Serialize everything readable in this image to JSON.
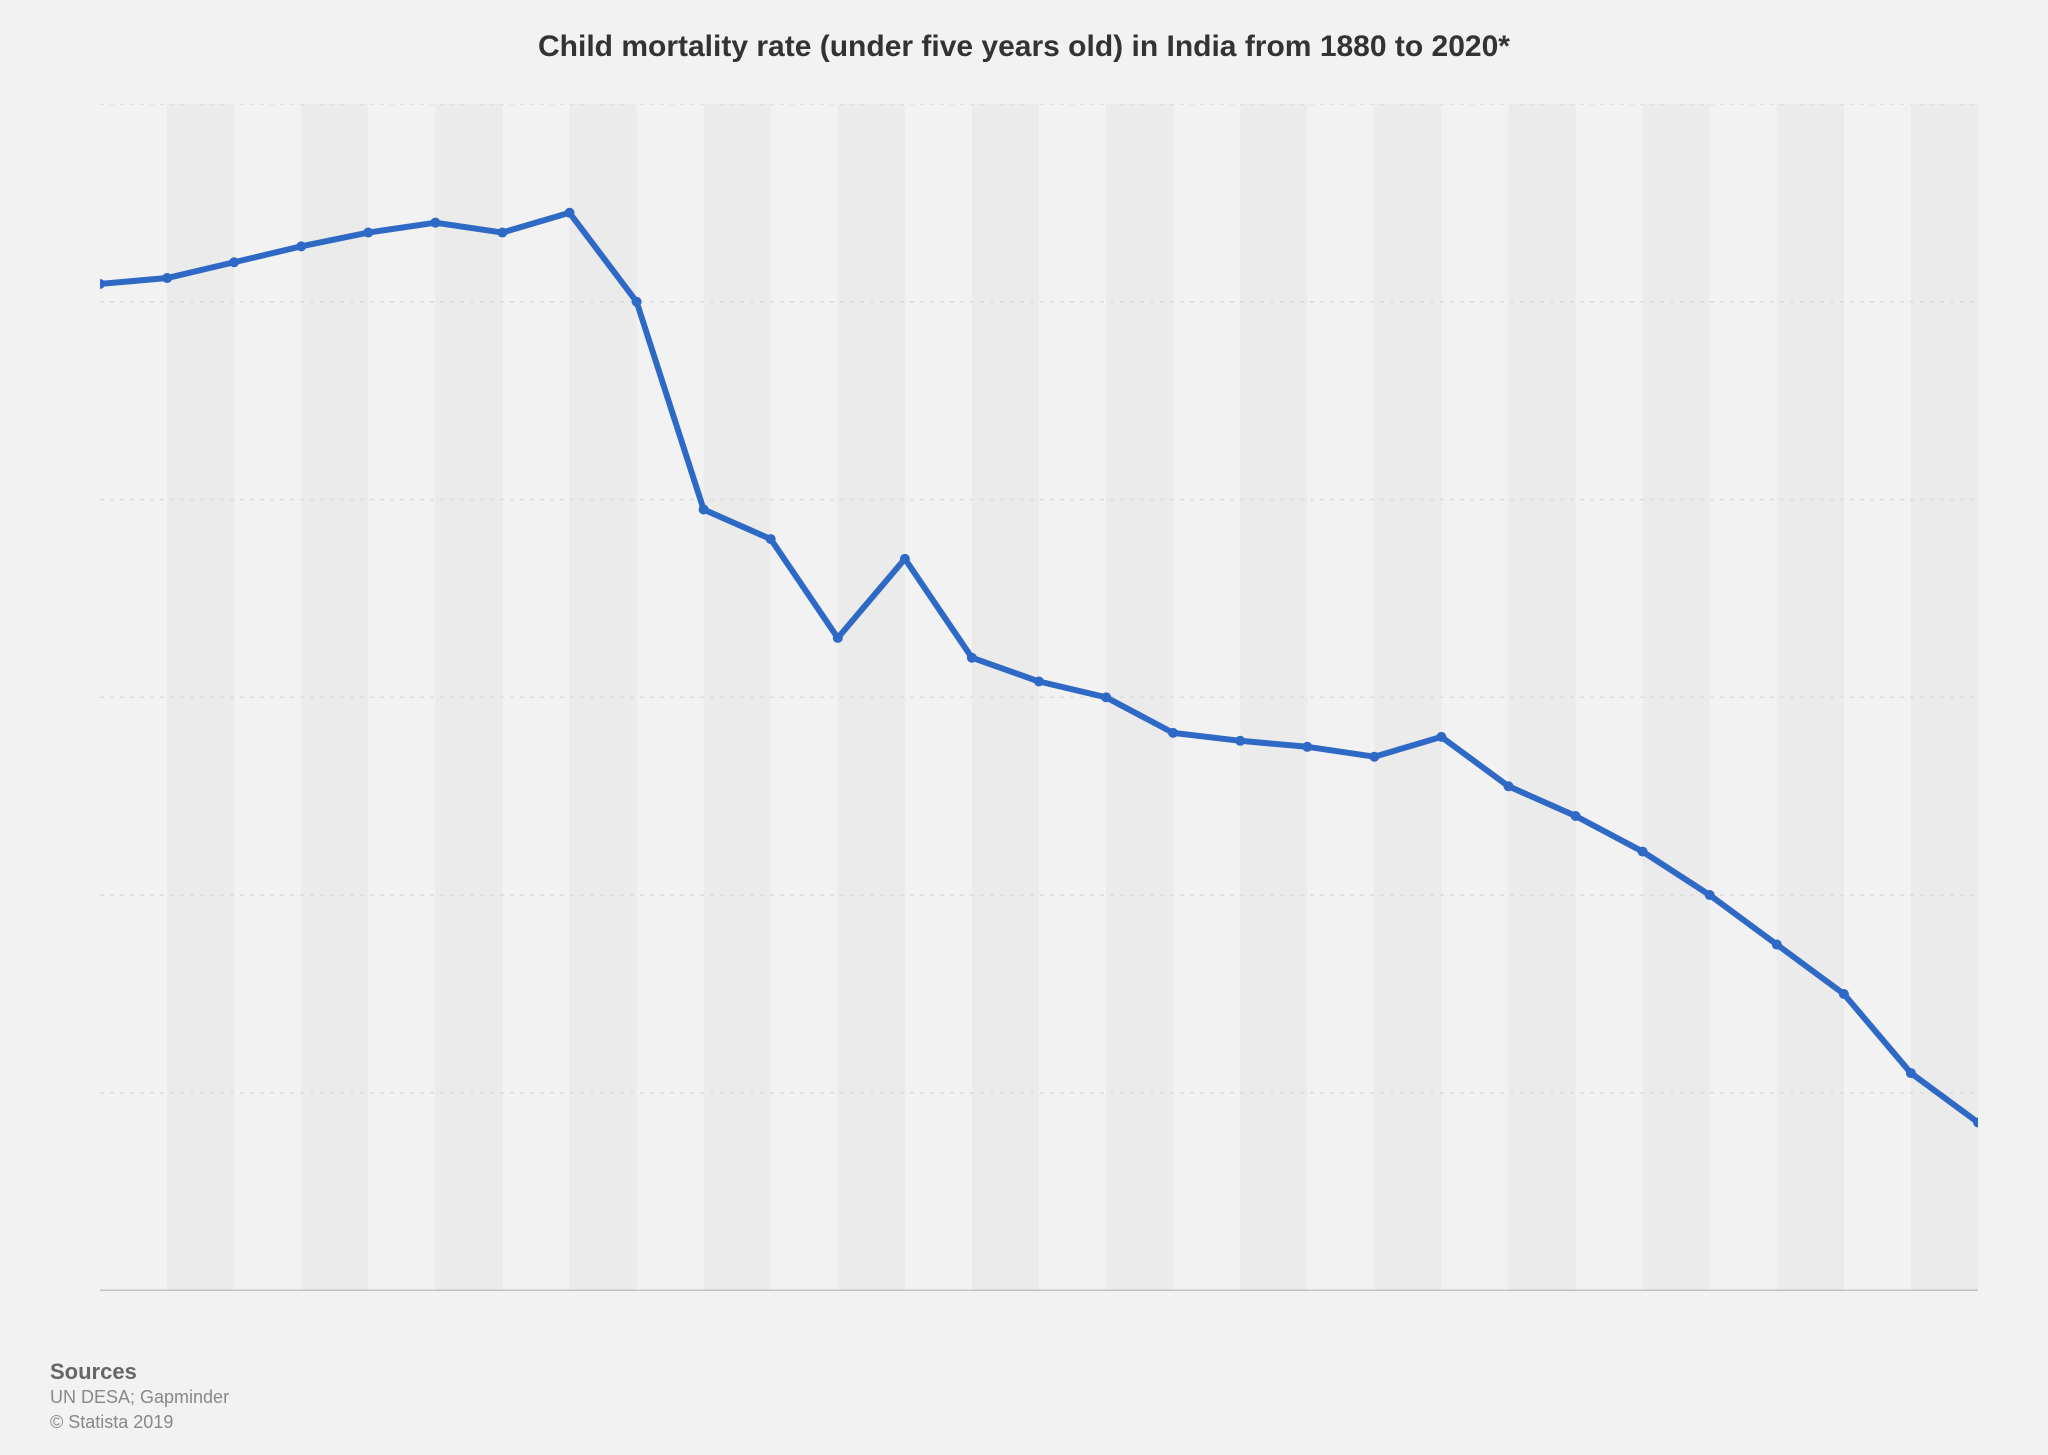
{
  "title": "Child mortality rate (under five years old) in India from 1880 to 2020*",
  "footer": {
    "label": "Sources",
    "line1": "UN DESA; Gapminder",
    "line2": "© Statista 2019"
  },
  "chart": {
    "type": "line",
    "background_color": "#f2f2f2",
    "alt_band_color": "#ebebeb",
    "grid_color": "#dcdcdc",
    "axis_color": "#bfbfbf",
    "line_color": "#2f69c6",
    "line_width": 6,
    "marker_radius": 5,
    "title_fontsize": 30,
    "ylim": [
      0,
      600
    ],
    "ytick_step": 100,
    "xlim": [
      1880,
      2020
    ],
    "x_band_step": 5,
    "years": [
      1880,
      1885,
      1890,
      1895,
      1900,
      1905,
      1910,
      1915,
      1920,
      1925,
      1930,
      1935,
      1940,
      1945,
      1950,
      1955,
      1960,
      1965,
      1970,
      1975,
      1980,
      1985,
      1990,
      1995,
      2000,
      2005,
      2010,
      2015,
      2020
    ],
    "values": [
      509,
      512,
      520,
      528,
      535,
      540,
      535,
      545,
      500,
      395,
      380,
      330,
      370,
      320,
      308,
      300,
      282,
      278,
      275,
      270,
      280,
      255,
      240,
      222,
      200,
      175,
      150,
      110,
      85
    ]
  }
}
